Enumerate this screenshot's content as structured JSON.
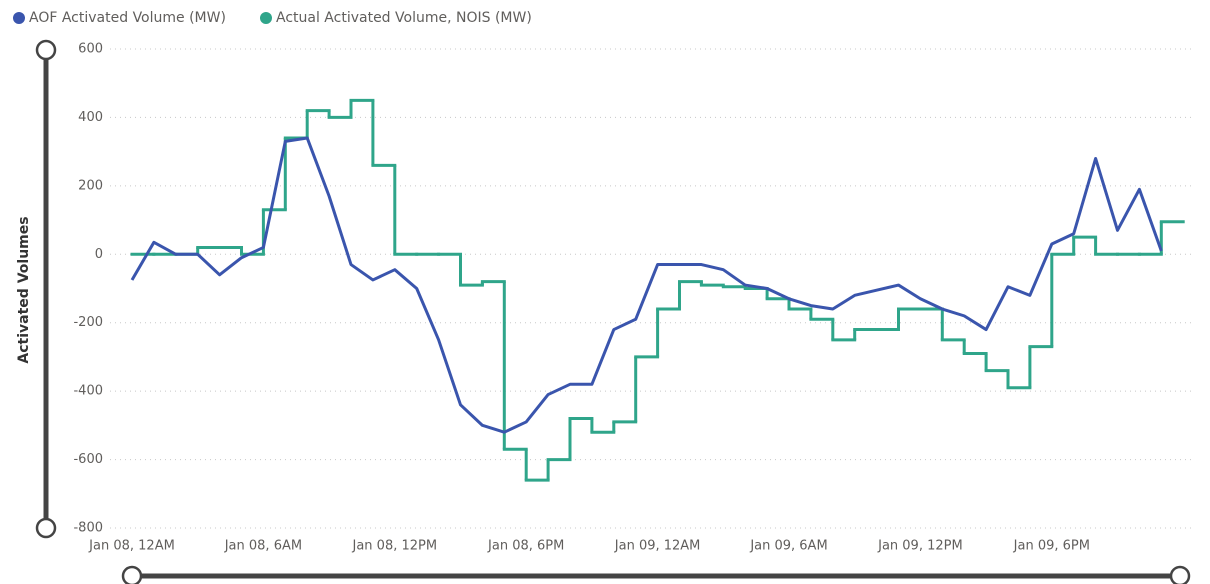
{
  "chart_data": {
    "type": "line",
    "y_label": "Activated Volumes",
    "categories": [
      "Jan 08, 12AM",
      null,
      null,
      null,
      null,
      null,
      "Jan 08, 6AM",
      null,
      null,
      null,
      null,
      null,
      "Jan 08, 12PM",
      null,
      null,
      null,
      null,
      null,
      "Jan 08, 6PM",
      null,
      null,
      null,
      null,
      null,
      "Jan 09, 12AM",
      null,
      null,
      null,
      null,
      null,
      "Jan 09, 6AM",
      null,
      null,
      null,
      null,
      null,
      "Jan 09, 12PM",
      null,
      null,
      null,
      null,
      null,
      "Jan 09, 6PM",
      null,
      null,
      null,
      null,
      null
    ],
    "series": [
      {
        "name": "AOF Activated Volume (MW)",
        "color": "#3a55ad",
        "step": false,
        "values": [
          -75,
          35,
          0,
          0,
          -60,
          -10,
          20,
          330,
          340,
          170,
          -30,
          -75,
          -45,
          -100,
          -250,
          -440,
          -500,
          -520,
          -490,
          -410,
          -380,
          -380,
          -220,
          -190,
          -30,
          -30,
          -30,
          -45,
          -90,
          -100,
          -130,
          -150,
          -160,
          -120,
          -105,
          -90,
          -130,
          -160,
          -180,
          -220,
          -95,
          -120,
          30,
          60,
          280,
          70,
          190,
          10
        ]
      },
      {
        "name": "Actual Activated Volume, NOIS (MW)",
        "color": "#2fa58a",
        "step": true,
        "values": [
          0,
          0,
          0,
          20,
          20,
          0,
          130,
          340,
          420,
          400,
          450,
          260,
          0,
          0,
          0,
          -90,
          -80,
          -570,
          -660,
          -600,
          -480,
          -520,
          -490,
          -300,
          -160,
          -80,
          -90,
          -95,
          -100,
          -130,
          -160,
          -190,
          -250,
          -220,
          -220,
          -160,
          -160,
          -250,
          -290,
          -340,
          -390,
          -270,
          0,
          50,
          0,
          0,
          0,
          95
        ]
      }
    ],
    "ylim": [
      -800,
      600
    ],
    "yticks": [
      -800,
      -600,
      -400,
      -200,
      0,
      200,
      400,
      600
    ],
    "grid": true
  }
}
